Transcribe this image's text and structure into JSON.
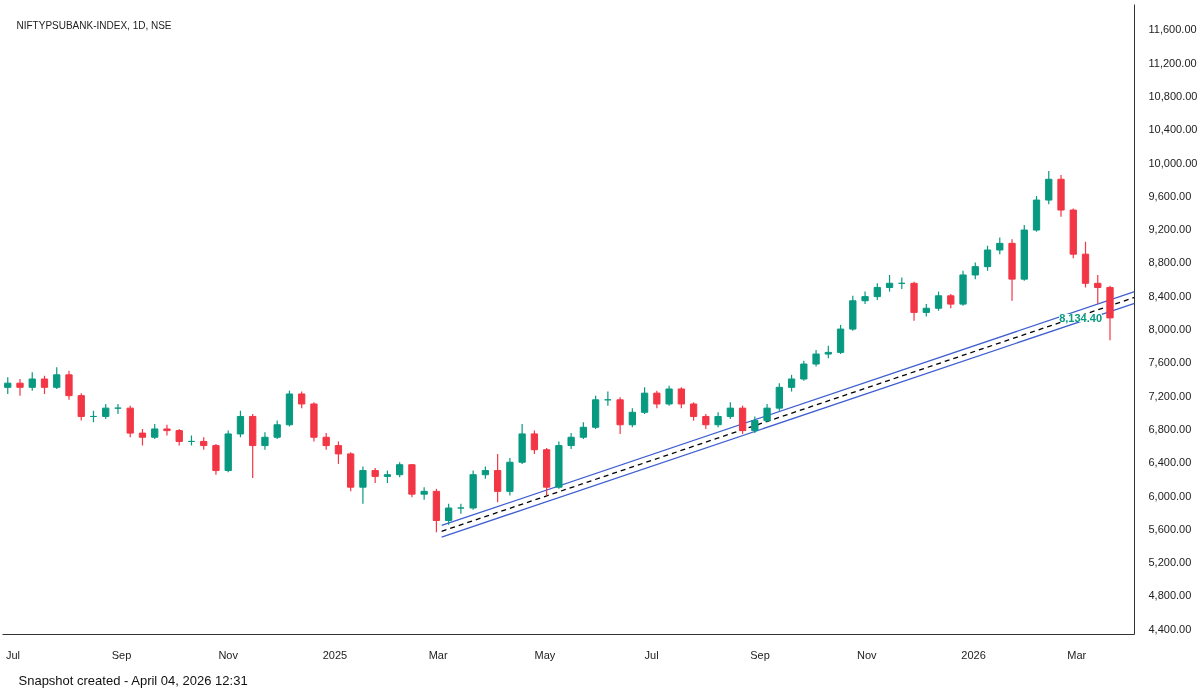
{
  "chart_data": {
    "type": "candlestick",
    "title": "NIFTYPSUBANK-INDEX, 1D, NSE",
    "x": [
      "2024-06-28",
      "2024-07-05",
      "2024-07-12",
      "2024-07-19",
      "2024-07-26",
      "2024-08-02",
      "2024-08-09",
      "2024-08-16",
      "2024-08-23",
      "2024-08-30",
      "2024-09-06",
      "2024-09-13",
      "2024-09-20",
      "2024-09-27",
      "2024-10-04",
      "2024-10-11",
      "2024-10-18",
      "2024-10-25",
      "2024-11-01",
      "2024-11-08",
      "2024-11-15",
      "2024-11-22",
      "2024-11-29",
      "2024-12-06",
      "2024-12-13",
      "2024-12-20",
      "2024-12-27",
      "2025-01-03",
      "2025-01-10",
      "2025-01-17",
      "2025-01-24",
      "2025-01-31",
      "2025-02-07",
      "2025-02-14",
      "2025-02-21",
      "2025-02-28",
      "2025-03-07",
      "2025-03-14",
      "2025-03-21",
      "2025-03-28",
      "2025-04-04",
      "2025-04-11",
      "2025-04-18",
      "2025-04-25",
      "2025-05-02",
      "2025-05-09",
      "2025-05-16",
      "2025-05-23",
      "2025-05-30",
      "2025-06-06",
      "2025-06-13",
      "2025-06-20",
      "2025-06-27",
      "2025-07-04",
      "2025-07-11",
      "2025-07-18",
      "2025-07-25",
      "2025-08-01",
      "2025-08-08",
      "2025-08-15",
      "2025-08-22",
      "2025-08-29",
      "2025-09-05",
      "2025-09-12",
      "2025-09-19",
      "2025-09-26",
      "2025-10-03",
      "2025-10-10",
      "2025-10-17",
      "2025-10-24",
      "2025-10-31",
      "2025-11-07",
      "2025-11-14",
      "2025-11-21",
      "2025-11-28",
      "2025-12-05",
      "2025-12-12",
      "2025-12-19",
      "2025-12-26",
      "2026-01-02",
      "2026-01-09",
      "2026-01-16",
      "2026-01-23",
      "2026-01-30",
      "2026-02-06",
      "2026-02-13",
      "2026-02-20",
      "2026-02-27",
      "2026-03-06",
      "2026-03-13",
      "2026-03-20"
    ],
    "ohlc": [
      [
        7300,
        7420,
        7220,
        7350
      ],
      [
        7350,
        7400,
        7200,
        7300
      ],
      [
        7300,
        7480,
        7260,
        7400
      ],
      [
        7400,
        7440,
        7220,
        7300
      ],
      [
        7300,
        7540,
        7280,
        7450
      ],
      [
        7450,
        7500,
        7150,
        7200
      ],
      [
        7200,
        7230,
        6900,
        6950
      ],
      [
        6950,
        7020,
        6880,
        6950
      ],
      [
        6950,
        7100,
        6920,
        7050
      ],
      [
        7050,
        7100,
        6980,
        7050
      ],
      [
        7050,
        7080,
        6700,
        6750
      ],
      [
        6750,
        6800,
        6600,
        6700
      ],
      [
        6700,
        6860,
        6680,
        6800
      ],
      [
        6800,
        6850,
        6720,
        6780
      ],
      [
        6780,
        6800,
        6600,
        6650
      ],
      [
        6650,
        6720,
        6600,
        6650
      ],
      [
        6650,
        6700,
        6550,
        6600
      ],
      [
        6600,
        6620,
        6250,
        6300
      ],
      [
        6300,
        6780,
        6280,
        6740
      ],
      [
        6740,
        7020,
        6700,
        6950
      ],
      [
        6950,
        6980,
        6210,
        6600
      ],
      [
        6600,
        6760,
        6550,
        6700
      ],
      [
        6700,
        6900,
        6680,
        6850
      ],
      [
        6850,
        7260,
        6830,
        7220
      ],
      [
        7220,
        7250,
        7050,
        7100
      ],
      [
        7100,
        7120,
        6650,
        6700
      ],
      [
        6700,
        6750,
        6550,
        6600
      ],
      [
        6600,
        6650,
        6380,
        6500
      ],
      [
        6500,
        6520,
        6050,
        6100
      ],
      [
        6100,
        6350,
        5900,
        6300
      ],
      [
        6300,
        6330,
        6150,
        6230
      ],
      [
        6230,
        6300,
        6150,
        6250
      ],
      [
        6250,
        6400,
        6220,
        6370
      ],
      [
        6370,
        6380,
        5980,
        6016
      ],
      [
        6016,
        6100,
        5950,
        6050
      ],
      [
        6050,
        6080,
        5560,
        5700
      ],
      [
        5700,
        5900,
        5650,
        5850
      ],
      [
        5850,
        5900,
        5780,
        5850
      ],
      [
        5850,
        6300,
        5830,
        6250
      ],
      [
        6250,
        6350,
        6200,
        6300
      ],
      [
        6300,
        6500,
        5920,
        6050
      ],
      [
        6050,
        6450,
        6000,
        6400
      ],
      [
        6400,
        6860,
        6380,
        6740
      ],
      [
        6740,
        6780,
        6500,
        6550
      ],
      [
        6550,
        6570,
        6000,
        6100
      ],
      [
        6100,
        6650,
        6080,
        6600
      ],
      [
        6600,
        6750,
        6560,
        6700
      ],
      [
        6700,
        6880,
        6680,
        6820
      ],
      [
        6820,
        7200,
        6800,
        7150
      ],
      [
        7150,
        7250,
        7080,
        7150
      ],
      [
        7150,
        7180,
        6740,
        6850
      ],
      [
        6850,
        7050,
        6820,
        7000
      ],
      [
        7000,
        7300,
        6980,
        7230
      ],
      [
        7230,
        7260,
        7050,
        7100
      ],
      [
        7100,
        7320,
        7080,
        7280
      ],
      [
        7280,
        7300,
        7050,
        7100
      ],
      [
        7100,
        7120,
        6900,
        6950
      ],
      [
        6950,
        6980,
        6800,
        6850
      ],
      [
        6850,
        7000,
        6820,
        6950
      ],
      [
        6950,
        7120,
        6920,
        7050
      ],
      [
        7050,
        7080,
        6740,
        6780
      ],
      [
        6780,
        6950,
        6750,
        6900
      ],
      [
        6900,
        7100,
        6880,
        7050
      ],
      [
        7050,
        7350,
        7020,
        7300
      ],
      [
        7300,
        7450,
        7250,
        7400
      ],
      [
        7400,
        7620,
        7380,
        7580
      ],
      [
        7580,
        7750,
        7550,
        7700
      ],
      [
        7700,
        7800,
        7650,
        7720
      ],
      [
        7720,
        8050,
        7700,
        8000
      ],
      [
        8000,
        8400,
        7980,
        8340
      ],
      [
        8340,
        8450,
        8300,
        8390
      ],
      [
        8390,
        8550,
        8350,
        8500
      ],
      [
        8500,
        8650,
        8450,
        8550
      ],
      [
        8550,
        8620,
        8480,
        8550
      ],
      [
        8550,
        8570,
        8100,
        8200
      ],
      [
        8200,
        8300,
        8150,
        8250
      ],
      [
        8250,
        8450,
        8220,
        8400
      ],
      [
        8400,
        8420,
        8250,
        8300
      ],
      [
        8300,
        8700,
        8280,
        8650
      ],
      [
        8650,
        8800,
        8600,
        8750
      ],
      [
        8750,
        9000,
        8700,
        8950
      ],
      [
        8950,
        9100,
        8900,
        9030
      ],
      [
        9030,
        9080,
        8340,
        8600
      ],
      [
        8600,
        9250,
        8580,
        9190
      ],
      [
        9190,
        9600,
        9170,
        9550
      ],
      [
        9550,
        9900,
        9500,
        9800
      ],
      [
        9800,
        9850,
        9350,
        9430
      ],
      [
        9430,
        9450,
        8850,
        8900
      ],
      [
        8900,
        9050,
        8500,
        8550
      ],
      [
        8550,
        8650,
        8300,
        8500
      ],
      [
        8500,
        8520,
        7866,
        8134.4
      ]
    ],
    "colors": [
      "#089981",
      "#f23645",
      "#089981",
      "#f23645",
      "#089981",
      "#f23645",
      "#f23645",
      "#089981",
      "#089981",
      "#089981",
      "#f23645",
      "#f23645",
      "#089981",
      "#f23645",
      "#f23645",
      "#089981",
      "#f23645",
      "#f23645",
      "#089981",
      "#089981",
      "#f23645",
      "#089981",
      "#089981",
      "#089981",
      "#f23645",
      "#f23645",
      "#f23645",
      "#f23645",
      "#f23645",
      "#089981",
      "#f23645",
      "#089981",
      "#089981",
      "#f23645",
      "#089981",
      "#f23645",
      "#089981",
      "#089981",
      "#089981",
      "#089981",
      "#f23645",
      "#089981",
      "#089981",
      "#f23645",
      "#f23645",
      "#089981",
      "#089981",
      "#089981",
      "#089981",
      "#089981",
      "#f23645",
      "#089981",
      "#089981",
      "#f23645",
      "#089981",
      "#f23645",
      "#f23645",
      "#f23645",
      "#089981",
      "#089981",
      "#f23645",
      "#089981",
      "#089981",
      "#089981",
      "#089981",
      "#089981",
      "#089981",
      "#089981",
      "#089981",
      "#089981",
      "#089981",
      "#089981",
      "#089981",
      "#089981",
      "#f23645",
      "#089981",
      "#089981",
      "#f23645",
      "#089981",
      "#089981",
      "#089981",
      "#089981",
      "#f23645",
      "#089981",
      "#089981",
      "#089981",
      "#f23645",
      "#f23645",
      "#f23645",
      "#f23645",
      "#f23645"
    ],
    "series": [
      {
        "type": "line",
        "x": [
          "2025-03-03",
          "2026-04-03"
        ],
        "values": [
          5640,
          8450
        ],
        "color": "#3f5fd0",
        "line_style": "solid"
      },
      {
        "type": "line",
        "x": [
          "2025-03-03",
          "2026-04-03"
        ],
        "values": [
          5570,
          8380
        ],
        "color": "#000000",
        "line_style": "dashed"
      },
      {
        "type": "line",
        "x": [
          "2025-03-03",
          "2026-04-03"
        ],
        "values": [
          5500,
          8310
        ],
        "color": "#3f5fd0",
        "line_style": "solid"
      }
    ],
    "xlim": [
      "2024-06-25",
      "2026-04-03"
    ],
    "ylim": [
      4330,
      11900
    ],
    "xticks": [
      {
        "value": "2024-07-01",
        "label": "Jul"
      },
      {
        "value": "2024-09-01",
        "label": "Sep"
      },
      {
        "value": "2024-11-01",
        "label": "Nov"
      },
      {
        "value": "2025-01-01",
        "label": "2025"
      },
      {
        "value": "2025-03-01",
        "label": "Mar"
      },
      {
        "value": "2025-05-01",
        "label": "May"
      },
      {
        "value": "2025-07-01",
        "label": "Jul"
      },
      {
        "value": "2025-09-01",
        "label": "Sep"
      },
      {
        "value": "2025-11-01",
        "label": "Nov"
      },
      {
        "value": "2026-01-01",
        "label": "2026"
      },
      {
        "value": "2026-03-01",
        "label": "Mar"
      }
    ],
    "yticks": [
      {
        "value": 4400,
        "label": "4,400.00"
      },
      {
        "value": 4800,
        "label": "4,800.00"
      },
      {
        "value": 5200,
        "label": "5,200.00"
      },
      {
        "value": 5600,
        "label": "5,600.00"
      },
      {
        "value": 6000,
        "label": "6,000.00"
      },
      {
        "value": 6400,
        "label": "6,400.00"
      },
      {
        "value": 6800,
        "label": "6,800.00"
      },
      {
        "value": 7200,
        "label": "7,200.00"
      },
      {
        "value": 7600,
        "label": "7,600.00"
      },
      {
        "value": 8000,
        "label": "8,000.00"
      },
      {
        "value": 8400,
        "label": "8,400.00"
      },
      {
        "value": 8800,
        "label": "8,800.00"
      },
      {
        "value": 9200,
        "label": "9,200.00"
      },
      {
        "value": 9600,
        "label": "9,600.00"
      },
      {
        "value": 10000,
        "label": "10,000.00"
      },
      {
        "value": 10400,
        "label": "10,400.00"
      },
      {
        "value": 10800,
        "label": "10,800.00"
      },
      {
        "value": 11200,
        "label": "11,200.00"
      },
      {
        "value": 11600,
        "label": "11,600.00"
      }
    ],
    "annotations": [
      "8,134.40",
      "Snapshot created - April 04, 2026 12:31"
    ]
  }
}
